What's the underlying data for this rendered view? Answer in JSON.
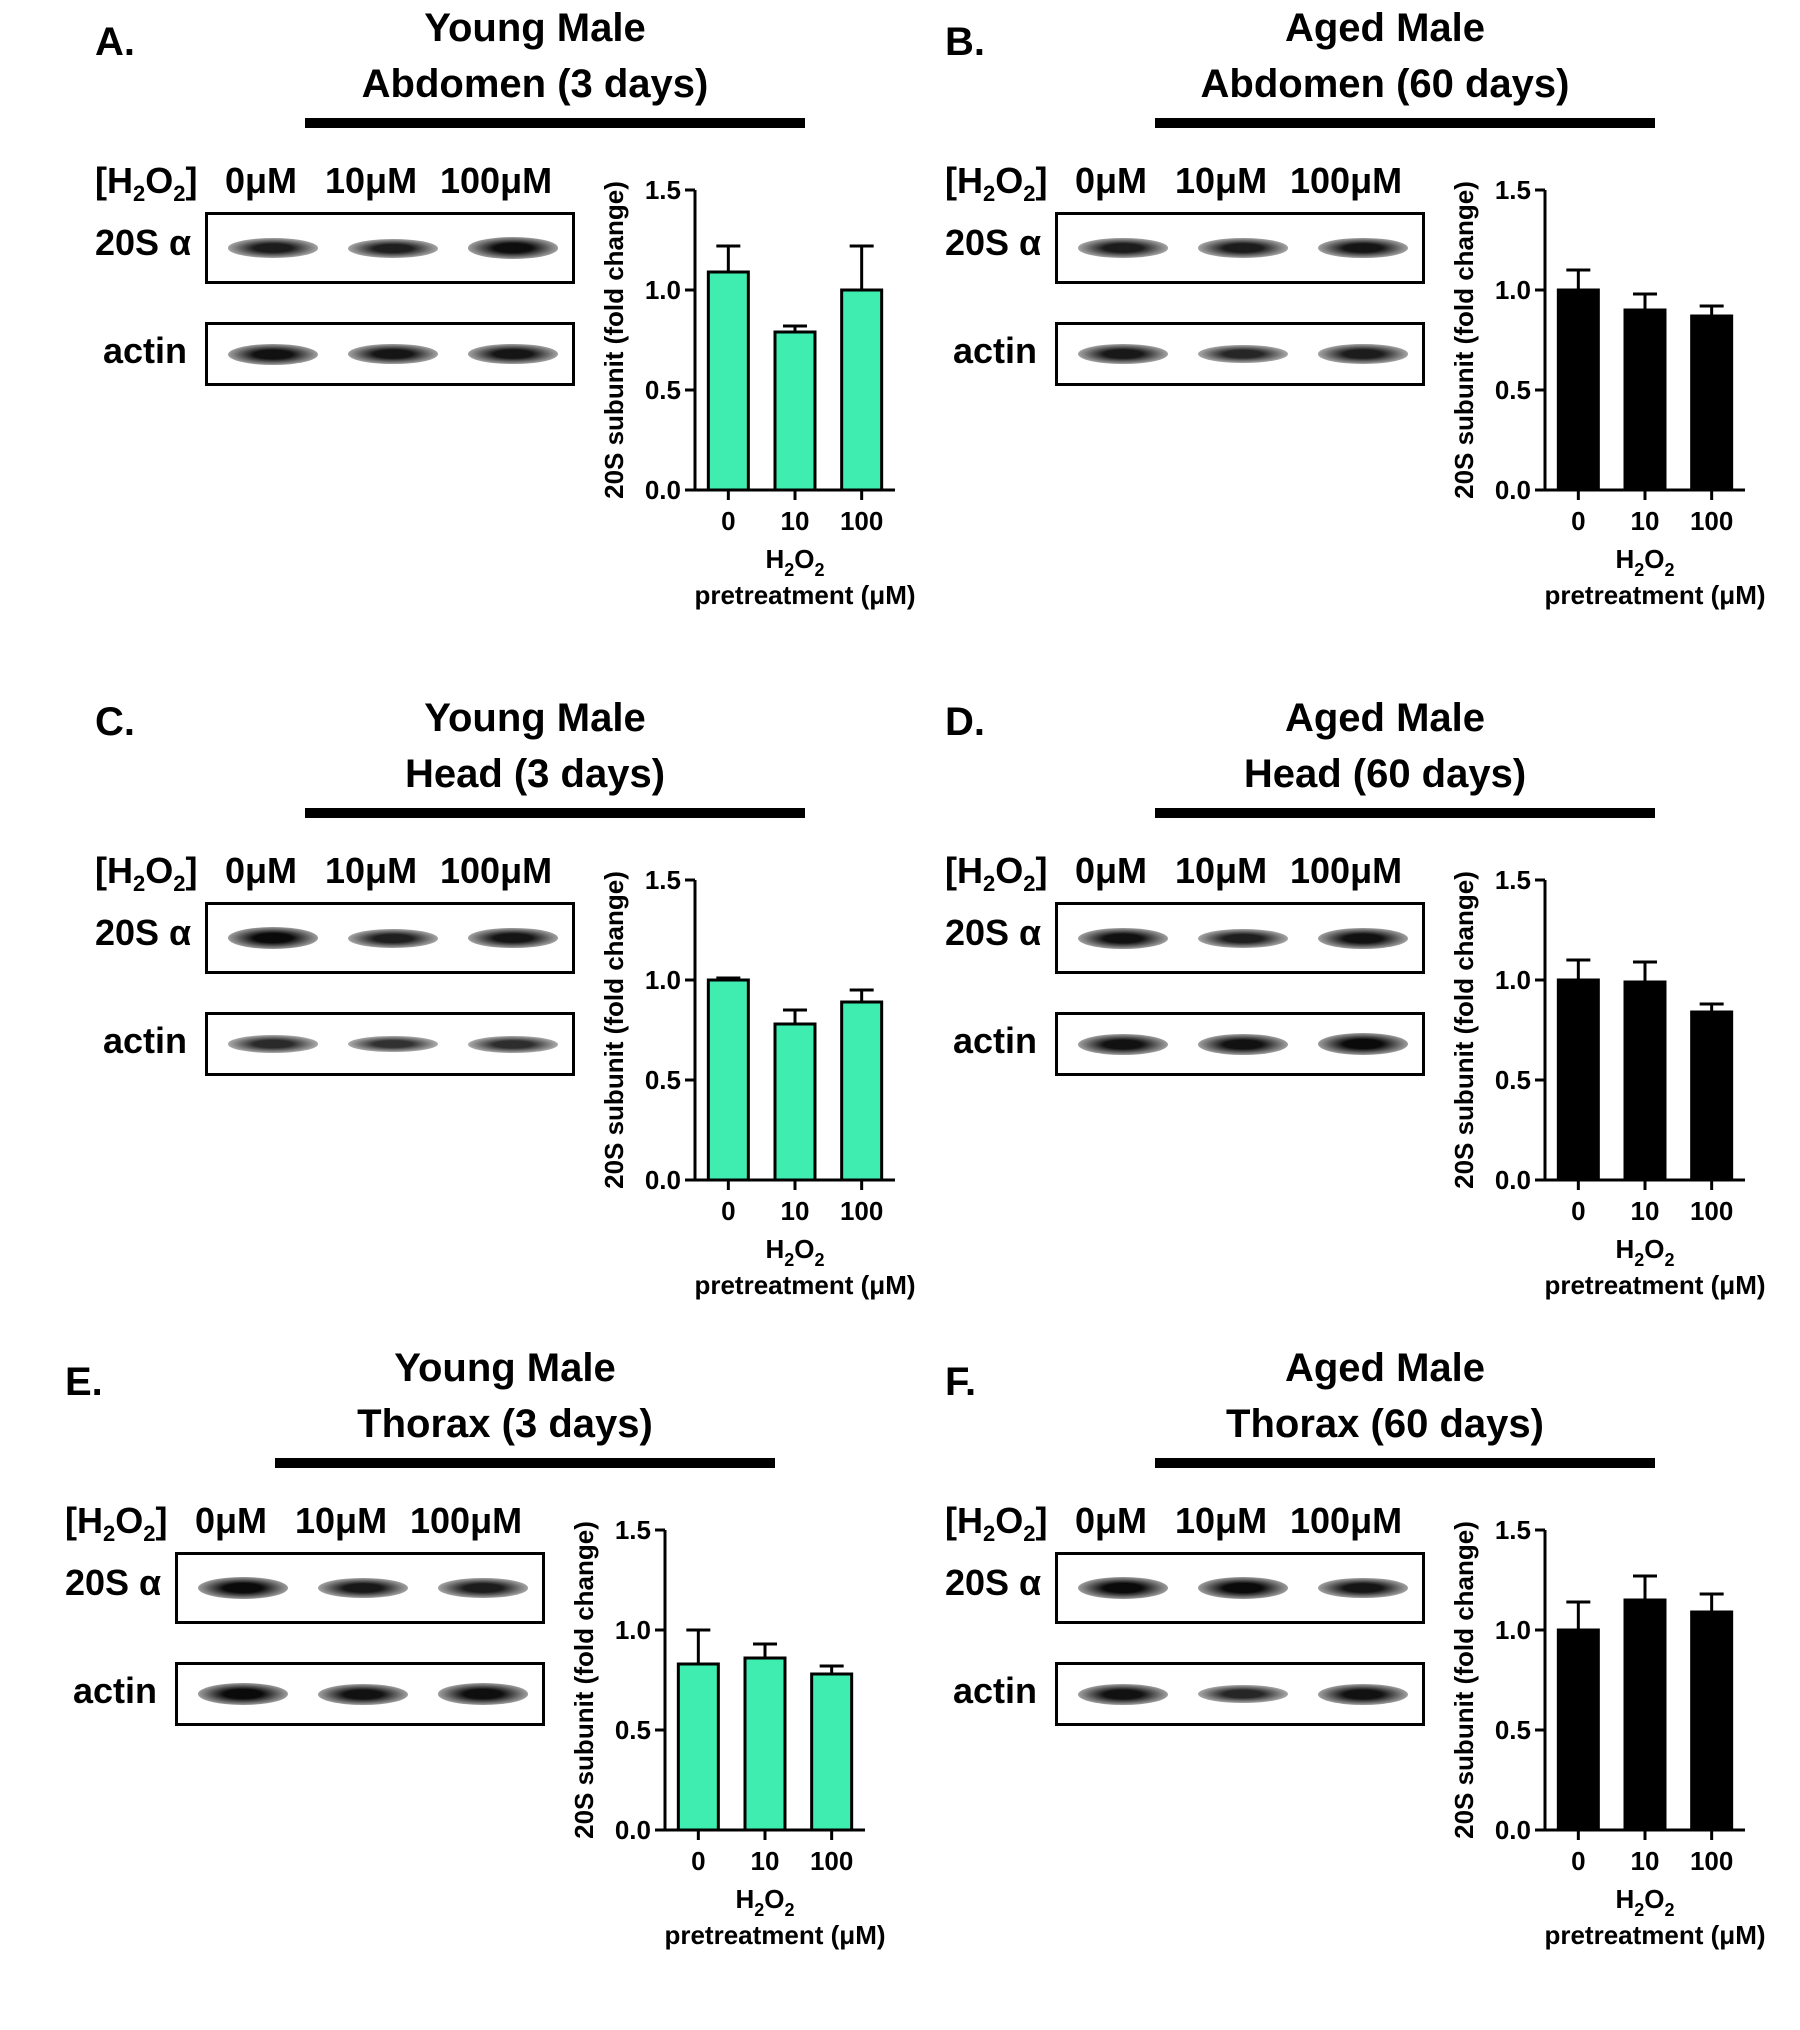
{
  "common": {
    "h2o2_label": "[H",
    "h2o2_sub": "2",
    "h2o2_o": "O",
    "h2o2_close": "]",
    "lanes": [
      "0μM",
      "10μM",
      "100μM"
    ],
    "row1": "20S α",
    "row2": "actin",
    "ylabel": "20S subunit (fold change)",
    "xlabel_line1_a": "H",
    "xlabel_line1_sub": "2",
    "xlabel_line1_b": "O",
    "xlabel_line1_sub2": "2",
    "xlabel_line2": "pretreatment (μM)"
  },
  "panels": [
    {
      "letter": "A.",
      "title1": "Young Male",
      "title2": "Abdomen (3 days)",
      "color": "#40EDB0",
      "band20": [
        0.75,
        0.7,
        0.95
      ],
      "bandActin": [
        0.9,
        0.85,
        0.85
      ]
    },
    {
      "letter": "B.",
      "title1": "Aged Male",
      "title2": "Abdomen (60 days)",
      "color": "#000000",
      "band20": [
        0.75,
        0.75,
        0.85
      ],
      "bandActin": [
        0.8,
        0.6,
        0.75
      ]
    },
    {
      "letter": "C.",
      "title1": "Young Male",
      "title2": "Head (3 days)",
      "color": "#40EDB0",
      "band20": [
        1.0,
        0.7,
        0.85
      ],
      "bandActin": [
        0.55,
        0.45,
        0.5
      ]
    },
    {
      "letter": "D.",
      "title1": "Aged Male",
      "title2": "Head (60 days)",
      "color": "#000000",
      "band20": [
        0.9,
        0.7,
        0.9
      ],
      "bandActin": [
        0.9,
        0.9,
        1.0
      ]
    },
    {
      "letter": "E.",
      "title1": "Young Male",
      "title2": "Thorax (3 days)",
      "color": "#40EDB0",
      "band20": [
        1.0,
        0.8,
        0.75
      ],
      "bandActin": [
        1.0,
        0.9,
        0.95
      ]
    },
    {
      "letter": "F.",
      "title1": "Aged Male",
      "title2": "Thorax (60 days)",
      "color": "#000000",
      "band20": [
        1.0,
        1.0,
        0.85
      ],
      "bandActin": [
        0.9,
        0.6,
        0.9
      ]
    }
  ],
  "chart_data": [
    {
      "panel": "A",
      "type": "bar",
      "categories": [
        "0",
        "10",
        "100"
      ],
      "values": [
        1.09,
        0.79,
        1.0
      ],
      "errors": [
        0.13,
        0.03,
        0.22
      ],
      "ylim": [
        0,
        1.5
      ],
      "yticks": [
        "0.0",
        "0.5",
        "1.0",
        "1.5"
      ],
      "ylabel": "20S subunit (fold change)",
      "xlabel": "H2O2 pretreatment (μM)"
    },
    {
      "panel": "B",
      "type": "bar",
      "categories": [
        "0",
        "10",
        "100"
      ],
      "values": [
        1.0,
        0.9,
        0.87
      ],
      "errors": [
        0.1,
        0.08,
        0.05
      ],
      "ylim": [
        0,
        1.5
      ],
      "yticks": [
        "0.0",
        "0.5",
        "1.0",
        "1.5"
      ],
      "ylabel": "20S subunit (fold change)",
      "xlabel": "H2O2 pretreatment (μM)"
    },
    {
      "panel": "C",
      "type": "bar",
      "categories": [
        "0",
        "10",
        "100"
      ],
      "values": [
        1.0,
        0.78,
        0.89
      ],
      "errors": [
        0.01,
        0.07,
        0.06
      ],
      "ylim": [
        0,
        1.5
      ],
      "yticks": [
        "0.0",
        "0.5",
        "1.0",
        "1.5"
      ],
      "ylabel": "20S subunit (fold change)",
      "xlabel": "H2O2 pretreatment (μM)"
    },
    {
      "panel": "D",
      "type": "bar",
      "categories": [
        "0",
        "10",
        "100"
      ],
      "values": [
        1.0,
        0.99,
        0.84
      ],
      "errors": [
        0.1,
        0.1,
        0.04
      ],
      "ylim": [
        0,
        1.5
      ],
      "yticks": [
        "0.0",
        "0.5",
        "1.0",
        "1.5"
      ],
      "ylabel": "20S subunit (fold change)",
      "xlabel": "H2O2 pretreatment (μM)"
    },
    {
      "panel": "E",
      "type": "bar",
      "categories": [
        "0",
        "10",
        "100"
      ],
      "values": [
        0.83,
        0.86,
        0.78
      ],
      "errors": [
        0.17,
        0.07,
        0.04
      ],
      "ylim": [
        0,
        1.5
      ],
      "yticks": [
        "0.0",
        "0.5",
        "1.0",
        "1.5"
      ],
      "ylabel": "20S subunit (fold change)",
      "xlabel": "H2O2 pretreatment (μM)"
    },
    {
      "panel": "F",
      "type": "bar",
      "categories": [
        "0",
        "10",
        "100"
      ],
      "values": [
        1.0,
        1.15,
        1.09
      ],
      "errors": [
        0.14,
        0.12,
        0.09
      ],
      "ylim": [
        0,
        1.5
      ],
      "yticks": [
        "0.0",
        "0.5",
        "1.0",
        "1.5"
      ],
      "ylabel": "20S subunit (fold change)",
      "xlabel": "H2O2 pretreatment (μM)"
    }
  ]
}
